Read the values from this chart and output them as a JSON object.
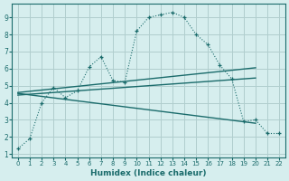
{
  "xlabel": "Humidex (Indice chaleur)",
  "bg_color": "#d6eeee",
  "grid_color": "#b0cece",
  "line_color": "#1a6b6b",
  "xlim": [
    -0.5,
    22.5
  ],
  "ylim": [
    0.8,
    9.8
  ],
  "xticks": [
    0,
    1,
    2,
    3,
    4,
    5,
    6,
    7,
    8,
    9,
    10,
    11,
    12,
    13,
    14,
    15,
    16,
    17,
    18,
    19,
    20,
    21,
    22
  ],
  "yticks": [
    1,
    2,
    3,
    4,
    5,
    6,
    7,
    8,
    9
  ],
  "curve1_x": [
    0,
    1,
    2,
    3,
    4,
    5,
    6,
    7,
    8,
    9,
    10,
    11,
    12,
    13,
    14,
    15,
    16,
    17,
    18,
    19,
    20,
    21,
    22
  ],
  "curve1_y": [
    1.3,
    1.9,
    4.0,
    4.9,
    4.3,
    4.7,
    6.1,
    6.7,
    5.3,
    5.2,
    8.2,
    9.0,
    9.15,
    9.3,
    9.0,
    8.0,
    7.4,
    6.2,
    5.4,
    2.9,
    3.0,
    2.2,
    2.2
  ],
  "line2_x": [
    0,
    20
  ],
  "line2_y": [
    4.45,
    5.45
  ],
  "line3_x": [
    0,
    20
  ],
  "line3_y": [
    4.6,
    6.05
  ],
  "line4_x": [
    0,
    20
  ],
  "line4_y": [
    4.55,
    2.8
  ]
}
